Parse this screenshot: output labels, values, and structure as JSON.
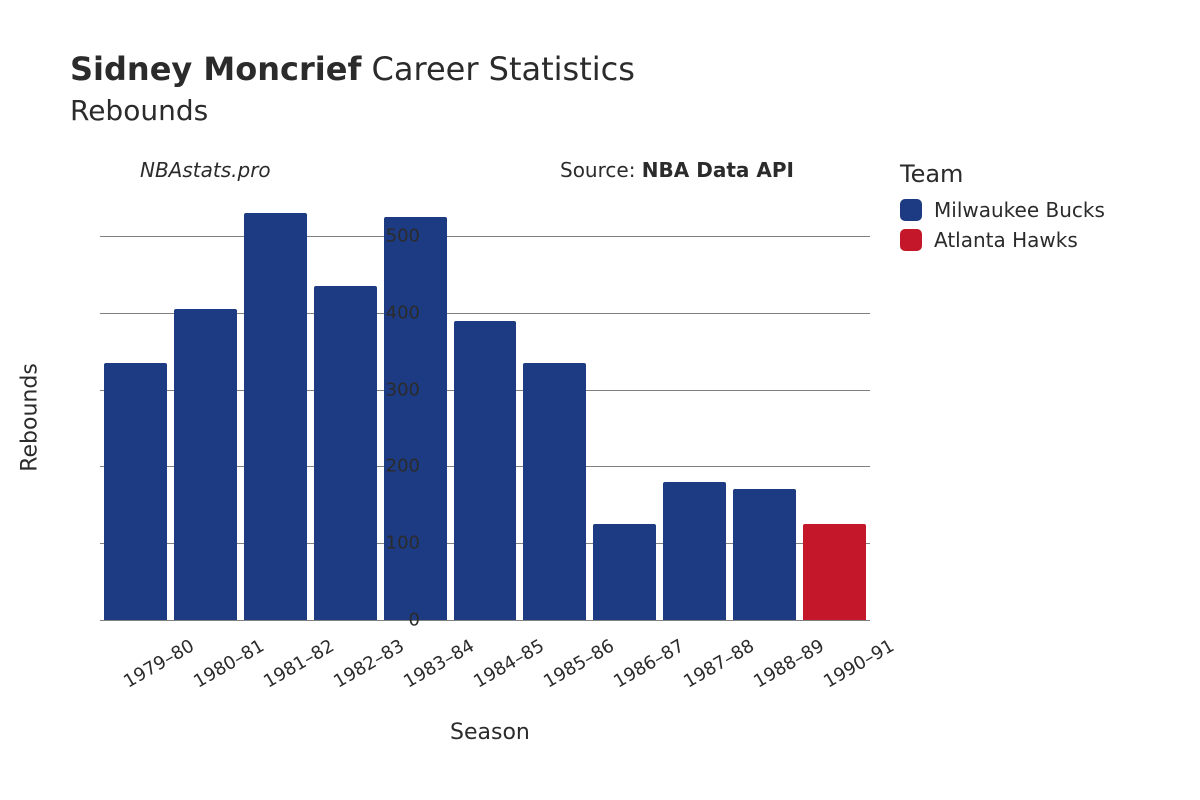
{
  "title": {
    "player": "Sidney Moncrief",
    "suffix": "Career Statistics",
    "stat": "Rebounds",
    "title_fontsize": 32,
    "subtitle_fontsize": 28
  },
  "attribution": {
    "site": "NBAstats.pro",
    "source_prefix": "Source: ",
    "source_name": "NBA Data API",
    "fontsize": 20
  },
  "chart": {
    "type": "bar",
    "xlabel": "Season",
    "ylabel": "Rebounds",
    "axis_label_fontsize": 22,
    "tick_fontsize": 18,
    "ylim": [
      0,
      560
    ],
    "yticks": [
      0,
      100,
      200,
      300,
      400,
      500
    ],
    "background_color": "#ffffff",
    "grid_color": "#808080",
    "x_tick_rotation": -30,
    "categories": [
      "1979–80",
      "1980–81",
      "1981–82",
      "1982–83",
      "1983–84",
      "1984–85",
      "1985–86",
      "1986–87",
      "1987–88",
      "1988–89",
      "1990–91"
    ],
    "values": [
      335,
      405,
      530,
      435,
      525,
      390,
      335,
      125,
      180,
      170,
      125
    ],
    "team_index": [
      0,
      0,
      0,
      0,
      0,
      0,
      0,
      0,
      0,
      0,
      1
    ],
    "teams": [
      {
        "name": "Milwaukee Bucks",
        "color": "#1d3b82"
      },
      {
        "name": "Atlanta Hawks",
        "color": "#c4182a"
      }
    ]
  },
  "legend": {
    "title": "Team",
    "title_fontsize": 24,
    "item_fontsize": 20
  }
}
